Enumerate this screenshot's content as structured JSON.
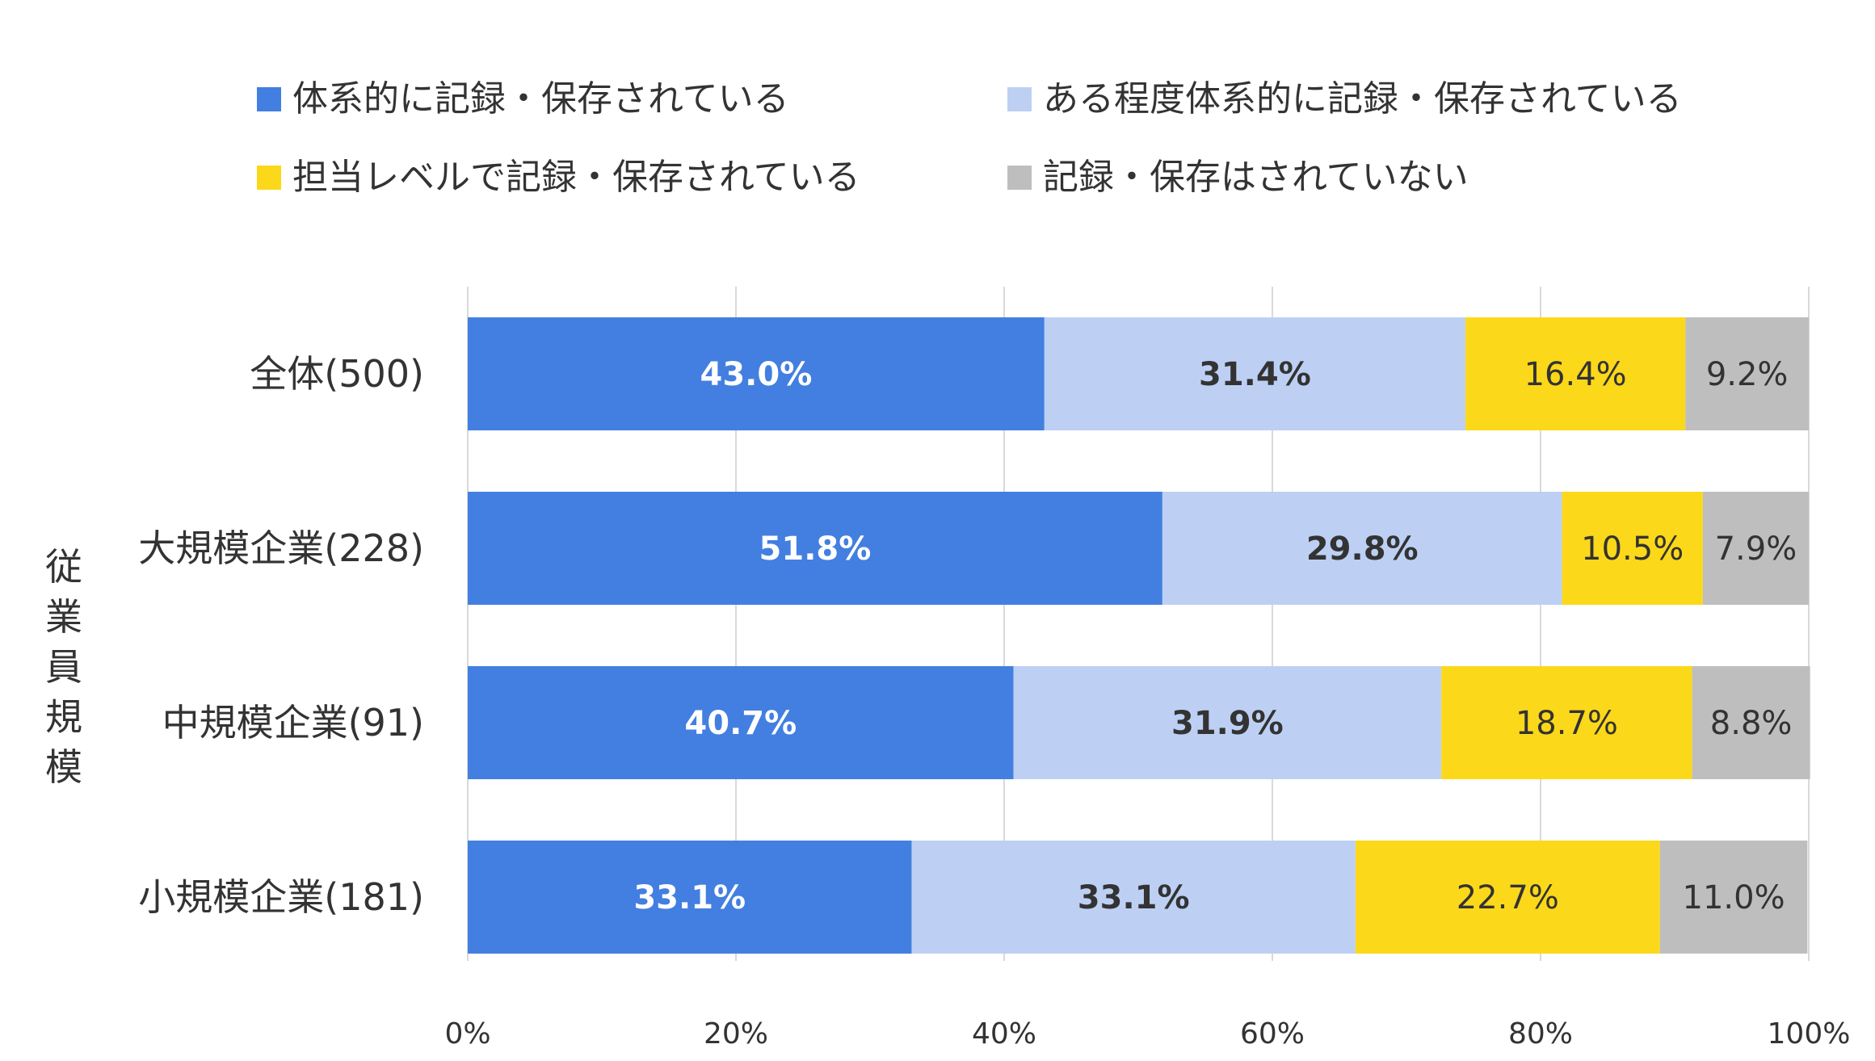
{
  "chart_data": {
    "type": "bar",
    "orientation": "horizontal",
    "stacked": true,
    "ylabel": "従業員規模",
    "categories": [
      "全体(500)",
      "大規模企業(228)",
      "中規模企業(91)",
      "小規模企業(181)"
    ],
    "series": [
      {
        "name": "体系的に記録・保存されている",
        "color": "#437FE0",
        "label_color": "#FFFFFF",
        "label_bold": true,
        "values": [
          43.0,
          51.8,
          40.7,
          33.1
        ],
        "labels": [
          "43.0%",
          "51.8%",
          "40.7%",
          "33.1%"
        ]
      },
      {
        "name": "ある程度体系的に記録・保存されている",
        "color": "#BDD0F4",
        "label_color": "#333333",
        "label_bold": true,
        "values": [
          31.4,
          29.8,
          31.9,
          33.1
        ],
        "labels": [
          "31.4%",
          "29.8%",
          "31.9%",
          "33.1%"
        ]
      },
      {
        "name": "担当レベルで記録・保存されている",
        "color": "#FCD81A",
        "label_color": "#333333",
        "label_bold": false,
        "values": [
          16.4,
          10.5,
          18.7,
          22.7
        ],
        "labels": [
          "16.4%",
          "10.5%",
          "18.7%",
          "22.7%"
        ]
      },
      {
        "name": "記録・保存はされていない",
        "color": "#BEBEBE",
        "label_color": "#333333",
        "label_bold": false,
        "values": [
          9.2,
          7.9,
          8.8,
          11.0
        ],
        "labels": [
          "9.2%",
          "7.9%",
          "8.8%",
          "11.0%"
        ]
      }
    ],
    "xlim": [
      0,
      100
    ],
    "xticks": [
      "0%",
      "20%",
      "40%",
      "60%",
      "80%",
      "100%"
    ],
    "grid": true,
    "legend_position": "top"
  }
}
